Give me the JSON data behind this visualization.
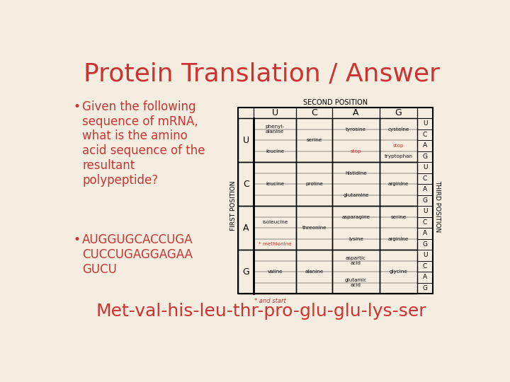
{
  "title": "Protein Translation / Answer",
  "title_color": "#cc3333",
  "title_fontsize": 26,
  "bg_color": "#f5ede0",
  "bullet1_lines": [
    "Given the following",
    "sequence of mRNA,",
    "what is the amino",
    "acid sequence of the",
    "resultant",
    "polypeptide?"
  ],
  "bullet2_lines": [
    "AUGGUGCACCUGA",
    "CUCCUGAGGAGAA",
    "GUCU"
  ],
  "bullet_color": "#cc3333",
  "bullet_fontsize": 12,
  "answer": "Met-val-his-leu-thr-pro-glu-glu-lys-ser",
  "answer_color": "#cc3333",
  "answer_fontsize": 18,
  "second_position_label": "SECOND POSITION",
  "first_position_label": "FIRST POSITION",
  "third_position_label": "THIRD POSITION",
  "col_headers": [
    "U",
    "C",
    "A",
    "G"
  ],
  "row_headers": [
    "U",
    "C",
    "A",
    "G"
  ],
  "third_pos": [
    "U",
    "C",
    "A",
    "G"
  ],
  "footnote": "* and start",
  "stop_color": "#cc3333",
  "normal_color": "#111111",
  "methionine_color": "#cc3333"
}
